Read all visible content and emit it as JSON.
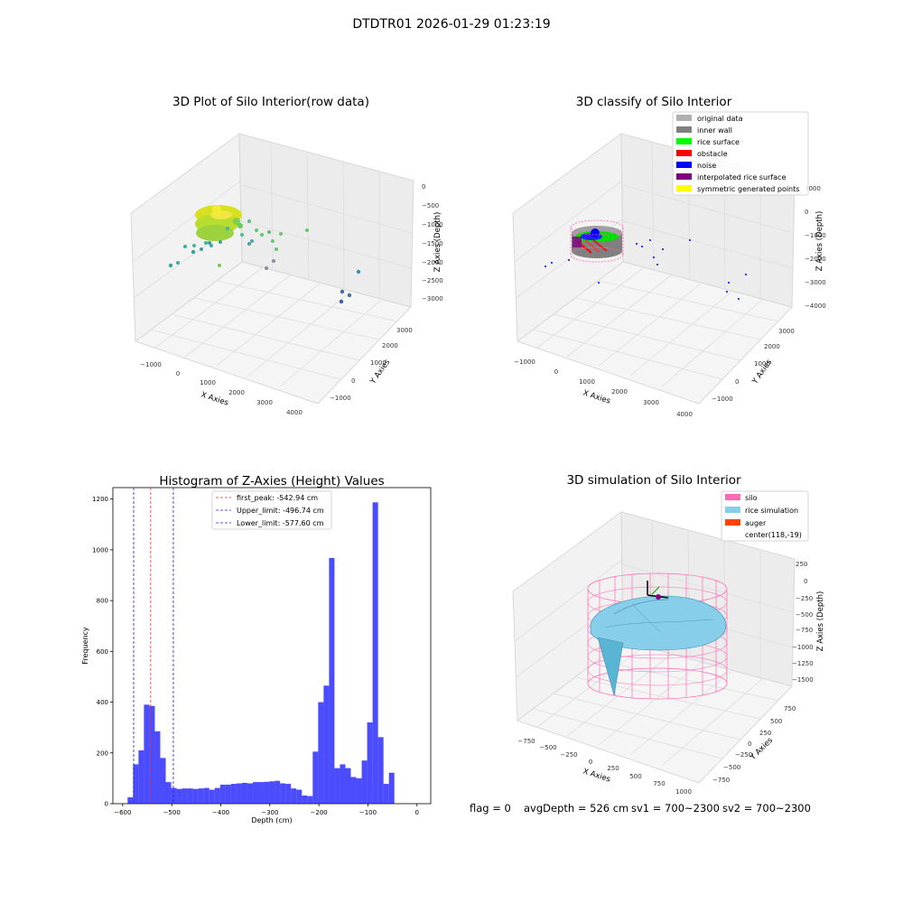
{
  "figure": {
    "title": "DTDTR01 2026-01-29 01:23:19"
  },
  "panel_raw": {
    "title": "3D Plot of Silo Interior(row data)",
    "xlabel": "X Axies",
    "ylabel": "Y Axies",
    "zlabel": "Z Axies (Depth)",
    "xticks": [
      "−1000",
      "0",
      "1000",
      "2000",
      "3000",
      "4000"
    ],
    "yticks": [
      "−1000",
      "0",
      "1000",
      "2000",
      "3000"
    ],
    "zticks": [
      "0",
      "−500",
      "−1000",
      "−1500",
      "−2000",
      "−2500",
      "−3000"
    ]
  },
  "panel_classify": {
    "title": "3D classify of Silo Interior",
    "xlabel": "X Axies",
    "ylabel": "Y Axies",
    "zlabel": "Z Axies (Depth)",
    "xticks": [
      "−1000",
      "0",
      "1000",
      "2000",
      "3000",
      "4000"
    ],
    "yticks": [
      "−1000",
      "0",
      "1000",
      "2000",
      "3000"
    ],
    "zticks": [
      "1000",
      "0",
      "−1000",
      "−2000",
      "−3000",
      "−4000"
    ],
    "legend": [
      {
        "label": "original data",
        "color": "#b0b0b0"
      },
      {
        "label": "inner wall",
        "color": "#808080"
      },
      {
        "label": "rice surface",
        "color": "#00ff00"
      },
      {
        "label": "obstacle",
        "color": "#ff0000"
      },
      {
        "label": "noise",
        "color": "#0000ff"
      },
      {
        "label": "interpolated rice surface",
        "color": "#800080"
      },
      {
        "label": "symmetric generated points",
        "color": "#ffff00"
      }
    ]
  },
  "panel_sim": {
    "title": "3D simulation of Silo Interior",
    "xlabel": "X Axies",
    "ylabel": "Y Axies",
    "zlabel": "Z Axies (Depth)",
    "xticks": [
      "−750",
      "−500",
      "−250",
      "0",
      "250",
      "500",
      "750",
      "1000"
    ],
    "yticks": [
      "750",
      "500",
      "250",
      "0",
      "−250",
      "−500",
      "−750"
    ],
    "zticks": [
      "250",
      "0",
      "−250",
      "−500",
      "−750",
      "−1000",
      "−1250",
      "−1500"
    ],
    "legend": [
      {
        "label": "silo",
        "color": "#ff69b4"
      },
      {
        "label": "rice simulation",
        "color": "#87ceeb"
      },
      {
        "label": "auger",
        "color": "#ff4500"
      },
      {
        "label": "center(118,-19)",
        "color": ""
      }
    ]
  },
  "status": {
    "flag": "flag = 0",
    "avg": "avgDepth = 526 cm",
    "sv1": "sv1 = 700~2300",
    "sv2": "sv2 = 700~2300"
  },
  "chart_data": [
    {
      "type": "histogram",
      "title": "Histogram of Z-Axies (Height) Values",
      "xlabel": "Depth (cm)",
      "ylabel": "Frequency",
      "xlim": [
        -620,
        28
      ],
      "ylim": [
        0,
        1245
      ],
      "xticks": [
        -600,
        -500,
        -400,
        -300,
        -200,
        -100,
        0
      ],
      "xtick_labels": [
        "−600",
        "−500",
        "−400",
        "−300",
        "−200",
        "−100",
        "0"
      ],
      "yticks": [
        0,
        200,
        400,
        600,
        800,
        1000,
        1200
      ],
      "bar_color": "#0000ff",
      "bin_start": -590,
      "bin_width": 11.1,
      "counts": [
        25,
        155,
        210,
        390,
        385,
        285,
        180,
        85,
        62,
        58,
        60,
        60,
        58,
        60,
        62,
        55,
        62,
        75,
        75,
        78,
        80,
        82,
        80,
        85,
        85,
        86,
        88,
        90,
        80,
        78,
        60,
        55,
        32,
        30,
        205,
        400,
        465,
        968,
        140,
        155,
        140,
        105,
        100,
        170,
        320,
        1187,
        262,
        78,
        122
      ],
      "vlines": [
        {
          "label": "first_peak: -542.94 cm",
          "x": -542.94,
          "color": "#e03030"
        },
        {
          "label": "Upper_limit: -496.74 cm",
          "x": -496.74,
          "color": "#2020d0"
        },
        {
          "label": "Lower_limit: -577.60 cm",
          "x": -577.6,
          "color": "#2020d0"
        }
      ]
    }
  ]
}
